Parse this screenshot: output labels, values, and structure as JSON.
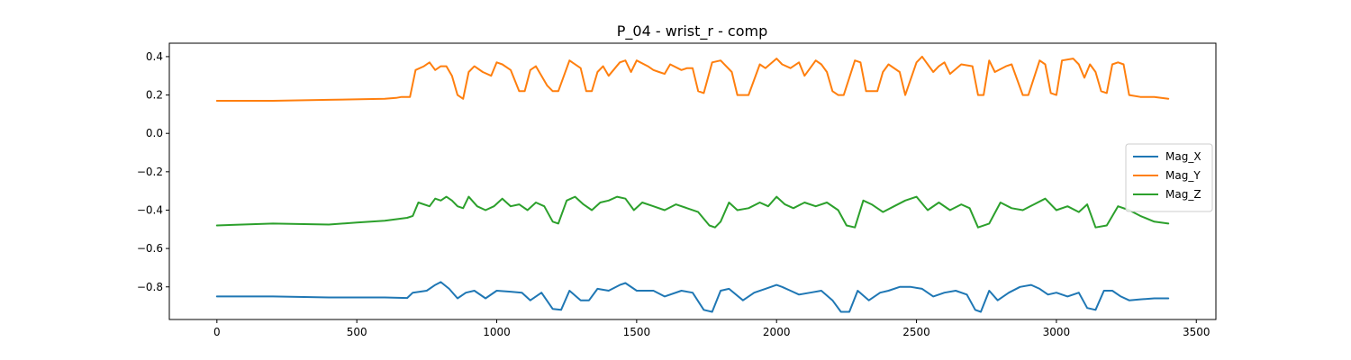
{
  "chart_data": {
    "type": "line",
    "title": "P_04 - wrist_r - comp",
    "xlabel": "",
    "ylabel": "",
    "xlim": [
      -170,
      3570
    ],
    "ylim": [
      -0.97,
      0.47
    ],
    "xticks": [
      0,
      500,
      1000,
      1500,
      2000,
      2500,
      3000,
      3500
    ],
    "yticks": [
      -0.8,
      -0.6,
      -0.4,
      -0.2,
      0.0,
      0.2,
      0.4
    ],
    "ytick_labels": [
      "−0.8",
      "−0.6",
      "−0.4",
      "−0.2",
      "0.0",
      "0.2",
      "0.4"
    ],
    "grid": false,
    "legend_position": "center-right",
    "series": [
      {
        "name": "Mag_X",
        "color": "#1f77b4",
        "x": [
          0,
          200,
          400,
          600,
          680,
          700,
          750,
          780,
          800,
          830,
          860,
          890,
          920,
          960,
          1000,
          1050,
          1090,
          1120,
          1160,
          1200,
          1230,
          1260,
          1300,
          1330,
          1360,
          1400,
          1440,
          1460,
          1500,
          1560,
          1600,
          1660,
          1700,
          1740,
          1770,
          1800,
          1830,
          1880,
          1920,
          1960,
          2000,
          2020,
          2050,
          2080,
          2120,
          2160,
          2200,
          2230,
          2260,
          2290,
          2330,
          2370,
          2400,
          2440,
          2480,
          2520,
          2560,
          2600,
          2640,
          2680,
          2710,
          2730,
          2760,
          2790,
          2830,
          2870,
          2910,
          2940,
          2970,
          3000,
          3040,
          3080,
          3110,
          3140,
          3170,
          3200,
          3230,
          3260,
          3300,
          3350,
          3400
        ],
        "y": [
          -0.85,
          -0.85,
          -0.855,
          -0.855,
          -0.858,
          -0.83,
          -0.82,
          -0.79,
          -0.775,
          -0.81,
          -0.86,
          -0.83,
          -0.82,
          -0.86,
          -0.82,
          -0.825,
          -0.83,
          -0.87,
          -0.83,
          -0.915,
          -0.92,
          -0.82,
          -0.87,
          -0.87,
          -0.81,
          -0.82,
          -0.79,
          -0.78,
          -0.82,
          -0.82,
          -0.85,
          -0.82,
          -0.83,
          -0.92,
          -0.93,
          -0.82,
          -0.81,
          -0.87,
          -0.83,
          -0.81,
          -0.79,
          -0.8,
          -0.82,
          -0.84,
          -0.83,
          -0.82,
          -0.87,
          -0.93,
          -0.93,
          -0.82,
          -0.87,
          -0.83,
          -0.82,
          -0.8,
          -0.8,
          -0.81,
          -0.85,
          -0.83,
          -0.82,
          -0.84,
          -0.92,
          -0.93,
          -0.82,
          -0.87,
          -0.83,
          -0.8,
          -0.79,
          -0.81,
          -0.84,
          -0.83,
          -0.85,
          -0.83,
          -0.91,
          -0.92,
          -0.82,
          -0.82,
          -0.85,
          -0.87,
          -0.865,
          -0.86,
          -0.86
        ]
      },
      {
        "name": "Mag_Y",
        "color": "#ff7f0e",
        "x": [
          0,
          200,
          400,
          600,
          640,
          660,
          690,
          710,
          740,
          760,
          780,
          800,
          820,
          840,
          860,
          880,
          900,
          920,
          950,
          980,
          1000,
          1020,
          1050,
          1080,
          1100,
          1120,
          1140,
          1160,
          1180,
          1200,
          1220,
          1260,
          1300,
          1320,
          1340,
          1360,
          1380,
          1400,
          1440,
          1460,
          1480,
          1500,
          1540,
          1560,
          1580,
          1600,
          1620,
          1660,
          1680,
          1700,
          1720,
          1740,
          1770,
          1800,
          1840,
          1860,
          1880,
          1900,
          1940,
          1960,
          2000,
          2020,
          2050,
          2080,
          2100,
          2120,
          2140,
          2160,
          2180,
          2200,
          2220,
          2240,
          2280,
          2300,
          2320,
          2360,
          2380,
          2400,
          2440,
          2460,
          2500,
          2520,
          2560,
          2580,
          2600,
          2620,
          2660,
          2700,
          2720,
          2740,
          2760,
          2780,
          2820,
          2840,
          2880,
          2900,
          2940,
          2960,
          2980,
          3000,
          3020,
          3060,
          3080,
          3100,
          3120,
          3140,
          3160,
          3180,
          3200,
          3220,
          3240,
          3260,
          3300,
          3350,
          3400
        ],
        "y": [
          0.17,
          0.17,
          0.175,
          0.18,
          0.185,
          0.19,
          0.19,
          0.33,
          0.35,
          0.37,
          0.33,
          0.35,
          0.35,
          0.3,
          0.2,
          0.18,
          0.32,
          0.35,
          0.32,
          0.3,
          0.37,
          0.36,
          0.33,
          0.22,
          0.22,
          0.33,
          0.35,
          0.3,
          0.25,
          0.22,
          0.22,
          0.38,
          0.34,
          0.22,
          0.22,
          0.32,
          0.35,
          0.3,
          0.37,
          0.38,
          0.32,
          0.38,
          0.35,
          0.33,
          0.32,
          0.31,
          0.36,
          0.33,
          0.34,
          0.34,
          0.22,
          0.21,
          0.37,
          0.38,
          0.32,
          0.2,
          0.2,
          0.2,
          0.36,
          0.34,
          0.39,
          0.36,
          0.34,
          0.37,
          0.3,
          0.34,
          0.38,
          0.36,
          0.32,
          0.22,
          0.2,
          0.2,
          0.38,
          0.37,
          0.22,
          0.22,
          0.32,
          0.36,
          0.32,
          0.2,
          0.37,
          0.4,
          0.32,
          0.35,
          0.37,
          0.31,
          0.36,
          0.35,
          0.2,
          0.2,
          0.38,
          0.32,
          0.35,
          0.36,
          0.2,
          0.2,
          0.38,
          0.36,
          0.21,
          0.2,
          0.38,
          0.39,
          0.36,
          0.29,
          0.36,
          0.32,
          0.22,
          0.21,
          0.36,
          0.37,
          0.36,
          0.2,
          0.19,
          0.19,
          0.18
        ]
      },
      {
        "name": "Mag_Z",
        "color": "#2ca02c",
        "x": [
          0,
          200,
          400,
          500,
          600,
          680,
          700,
          720,
          760,
          780,
          800,
          820,
          840,
          860,
          880,
          900,
          930,
          960,
          990,
          1020,
          1050,
          1080,
          1110,
          1140,
          1170,
          1200,
          1220,
          1250,
          1280,
          1310,
          1340,
          1370,
          1400,
          1430,
          1460,
          1490,
          1520,
          1560,
          1600,
          1640,
          1680,
          1720,
          1760,
          1780,
          1800,
          1830,
          1860,
          1900,
          1940,
          1970,
          2000,
          2030,
          2060,
          2100,
          2140,
          2180,
          2220,
          2250,
          2280,
          2310,
          2340,
          2380,
          2420,
          2460,
          2500,
          2540,
          2580,
          2620,
          2660,
          2690,
          2720,
          2760,
          2800,
          2840,
          2880,
          2920,
          2960,
          3000,
          3040,
          3080,
          3110,
          3140,
          3180,
          3220,
          3260,
          3300,
          3350,
          3400
        ],
        "y": [
          -0.48,
          -0.47,
          -0.475,
          -0.465,
          -0.455,
          -0.44,
          -0.43,
          -0.36,
          -0.38,
          -0.34,
          -0.35,
          -0.33,
          -0.35,
          -0.38,
          -0.39,
          -0.33,
          -0.38,
          -0.4,
          -0.38,
          -0.34,
          -0.38,
          -0.37,
          -0.4,
          -0.36,
          -0.38,
          -0.46,
          -0.47,
          -0.35,
          -0.33,
          -0.37,
          -0.4,
          -0.36,
          -0.35,
          -0.33,
          -0.34,
          -0.4,
          -0.36,
          -0.38,
          -0.4,
          -0.37,
          -0.39,
          -0.41,
          -0.48,
          -0.49,
          -0.46,
          -0.36,
          -0.4,
          -0.39,
          -0.36,
          -0.38,
          -0.33,
          -0.37,
          -0.39,
          -0.36,
          -0.38,
          -0.36,
          -0.4,
          -0.48,
          -0.49,
          -0.35,
          -0.37,
          -0.41,
          -0.38,
          -0.35,
          -0.33,
          -0.4,
          -0.36,
          -0.4,
          -0.37,
          -0.39,
          -0.49,
          -0.47,
          -0.36,
          -0.39,
          -0.4,
          -0.37,
          -0.34,
          -0.4,
          -0.38,
          -0.41,
          -0.37,
          -0.49,
          -0.48,
          -0.38,
          -0.4,
          -0.43,
          -0.46,
          -0.47
        ]
      }
    ]
  }
}
